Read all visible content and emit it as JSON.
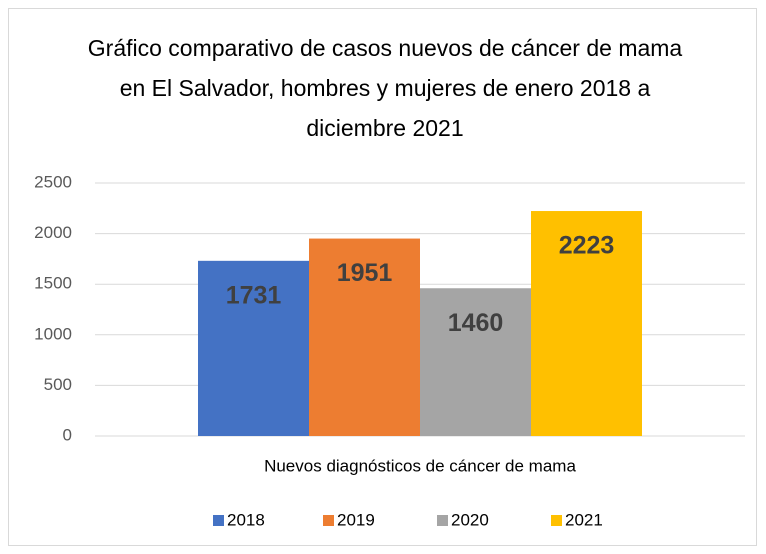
{
  "chart_data": {
    "type": "bar",
    "title": "Gráfico comparativo de casos nuevos de cáncer de mama en El Salvador, hombres y mujeres de enero 2018 a diciembre 2021",
    "categories": [
      "Nuevos diagnósticos de cáncer de mama"
    ],
    "series": [
      {
        "name": "2018",
        "color": "#4472c4",
        "values": [
          1731
        ]
      },
      {
        "name": "2019",
        "color": "#ed7d31",
        "values": [
          1951
        ]
      },
      {
        "name": "2020",
        "color": "#a5a5a5",
        "values": [
          1460
        ]
      },
      {
        "name": "2021",
        "color": "#ffc000",
        "values": [
          2223
        ]
      }
    ],
    "ylim": [
      0,
      2500
    ],
    "yticks": [
      0,
      500,
      1000,
      1500,
      2000,
      2500
    ],
    "grid": true,
    "legend": "bottom"
  }
}
